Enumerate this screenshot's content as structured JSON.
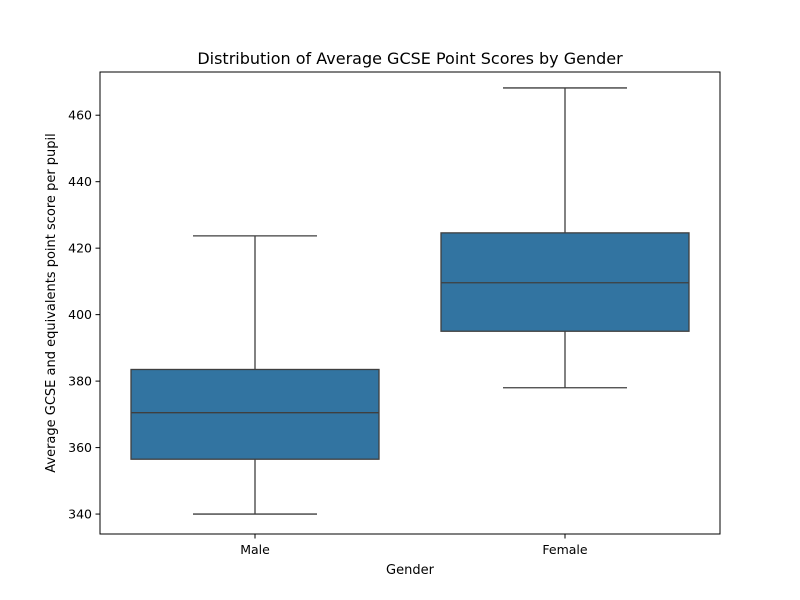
{
  "chart_data": {
    "type": "box",
    "title": "Distribution of Average GCSE Point Scores by Gender",
    "xlabel": "Gender",
    "ylabel": "Average GCSE and equivalents point score per pupil",
    "categories": [
      "Male",
      "Female"
    ],
    "boxes": [
      {
        "category": "Male",
        "min": 340.0,
        "q1": 356.5,
        "median": 370.5,
        "q3": 383.5,
        "max": 423.7
      },
      {
        "category": "Female",
        "min": 378.0,
        "q1": 395.0,
        "median": 409.6,
        "q3": 424.6,
        "max": 468.2
      }
    ],
    "ylim": [
      334.0,
      473.0
    ],
    "yticks": [
      340,
      360,
      380,
      400,
      420,
      440,
      460
    ],
    "ytick_labels": [
      "340",
      "360",
      "380",
      "400",
      "420",
      "440",
      "460"
    ],
    "grid": false,
    "colors": {
      "box_fill": "#3274a1",
      "line": "#3f3f3f",
      "axes": "#000000"
    }
  }
}
